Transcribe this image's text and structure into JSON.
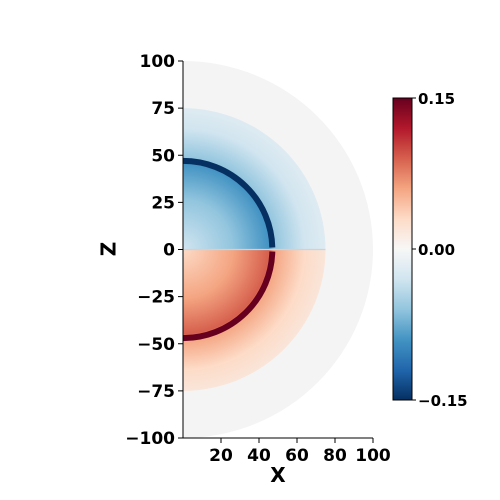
{
  "chart_data": {
    "type": "heatmap",
    "title": "",
    "xlabel": "X",
    "ylabel": "Z",
    "xlim": [
      0,
      100
    ],
    "ylim": [
      -100,
      100
    ],
    "x_ticks": [
      {
        "value": 20,
        "label": "20"
      },
      {
        "value": 40,
        "label": "40"
      },
      {
        "value": 60,
        "label": "60"
      },
      {
        "value": 80,
        "label": "80"
      },
      {
        "value": 100,
        "label": "100"
      }
    ],
    "y_ticks": [
      {
        "value": 100,
        "label": "100"
      },
      {
        "value": 75,
        "label": "75"
      },
      {
        "value": 50,
        "label": "50"
      },
      {
        "value": 25,
        "label": "25"
      },
      {
        "value": 0,
        "label": "0"
      },
      {
        "value": -25,
        "label": "−25"
      },
      {
        "value": -50,
        "label": "−50"
      },
      {
        "value": -75,
        "label": "−75"
      },
      {
        "value": -100,
        "label": "−100"
      }
    ],
    "colorbar": {
      "colormap": "RdBu_r",
      "min": -0.15,
      "max": 0.15,
      "ticks": [
        {
          "value": 0.15,
          "label": "0.15"
        },
        {
          "value": 0.0,
          "label": "0.00"
        },
        {
          "value": -0.15,
          "label": "−0.15"
        }
      ],
      "colors": [
        "#053061",
        "#2166ac",
        "#4393c3",
        "#92c5de",
        "#d1e5f0",
        "#f7f7f7",
        "#fddbc7",
        "#f4a582",
        "#d6604d",
        "#b2182b",
        "#67001f"
      ]
    },
    "domain_radius": 100,
    "features": {
      "field_extent_radius": 75,
      "inner_shell_radius": 47,
      "upper_half_sign": "negative",
      "lower_half_sign": "positive",
      "peak_magnitude": 0.15
    },
    "background_color": "#f4f4f4"
  }
}
